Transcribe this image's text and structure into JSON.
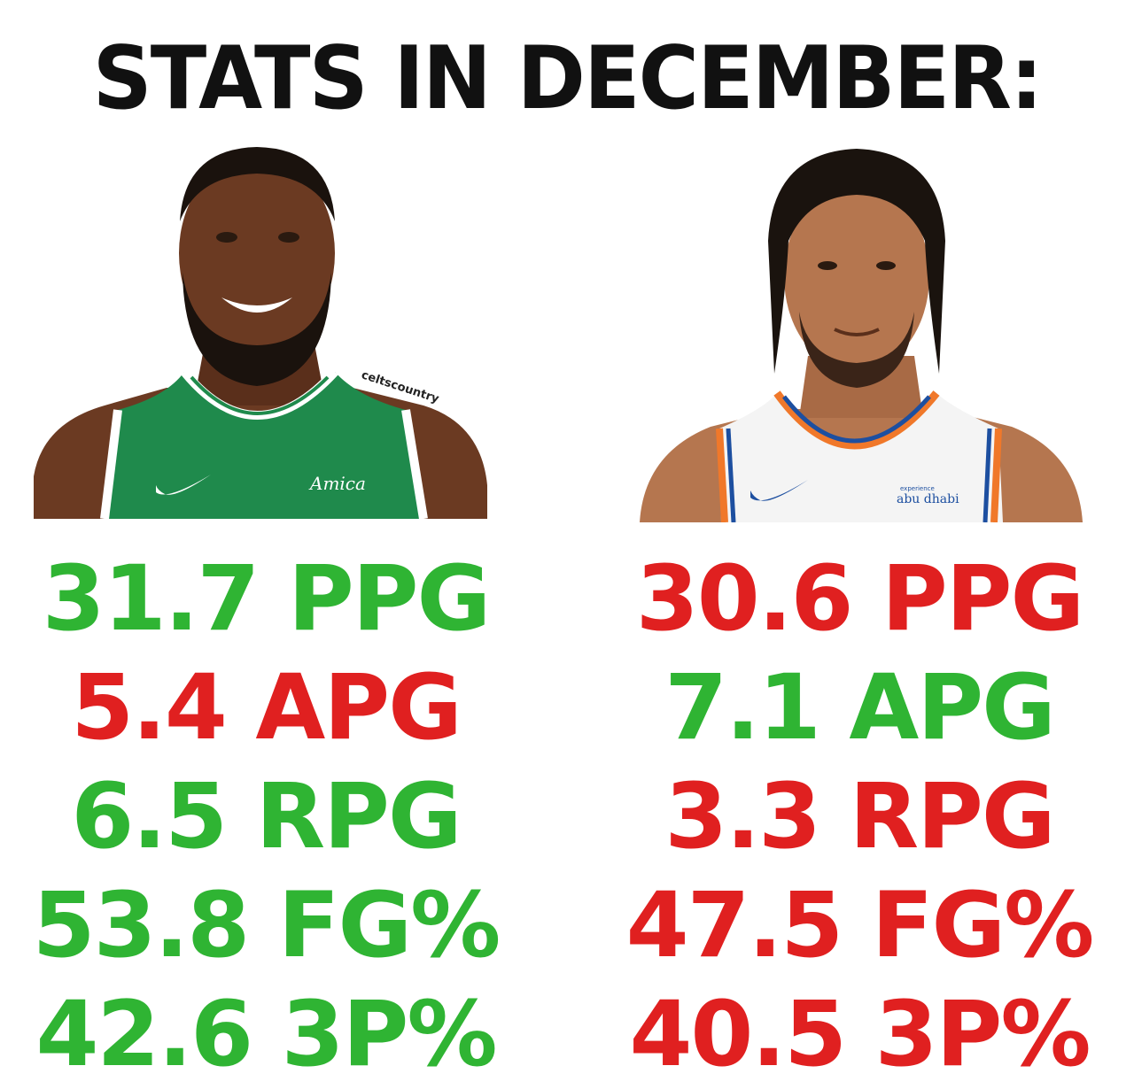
{
  "title": "STATS IN DECEMBER:",
  "colors": {
    "better": "#2fb433",
    "worse": "#e02020",
    "celtics_green": "#1f8a4c",
    "knicks_blue": "#1d4fa0",
    "knicks_orange": "#f0782a"
  },
  "left_player": {
    "photo_credit": "celtscountry",
    "jersey_sponsor": "Amica",
    "stats": [
      {
        "text": "31.7 PPG",
        "color": "green"
      },
      {
        "text": "5.4 APG",
        "color": "red"
      },
      {
        "text": "6.5 RPG",
        "color": "green"
      },
      {
        "text": "53.8 FG%",
        "color": "green"
      },
      {
        "text": "42.6 3P%",
        "color": "green"
      }
    ]
  },
  "right_player": {
    "jersey_sponsor_top": "experience",
    "jersey_sponsor": "abu dhabi",
    "stats": [
      {
        "text": "30.6 PPG",
        "color": "red"
      },
      {
        "text": "7.1 APG",
        "color": "green"
      },
      {
        "text": "3.3 RPG",
        "color": "red"
      },
      {
        "text": "47.5 FG%",
        "color": "red"
      },
      {
        "text": "40.5 3P%",
        "color": "red"
      }
    ]
  }
}
